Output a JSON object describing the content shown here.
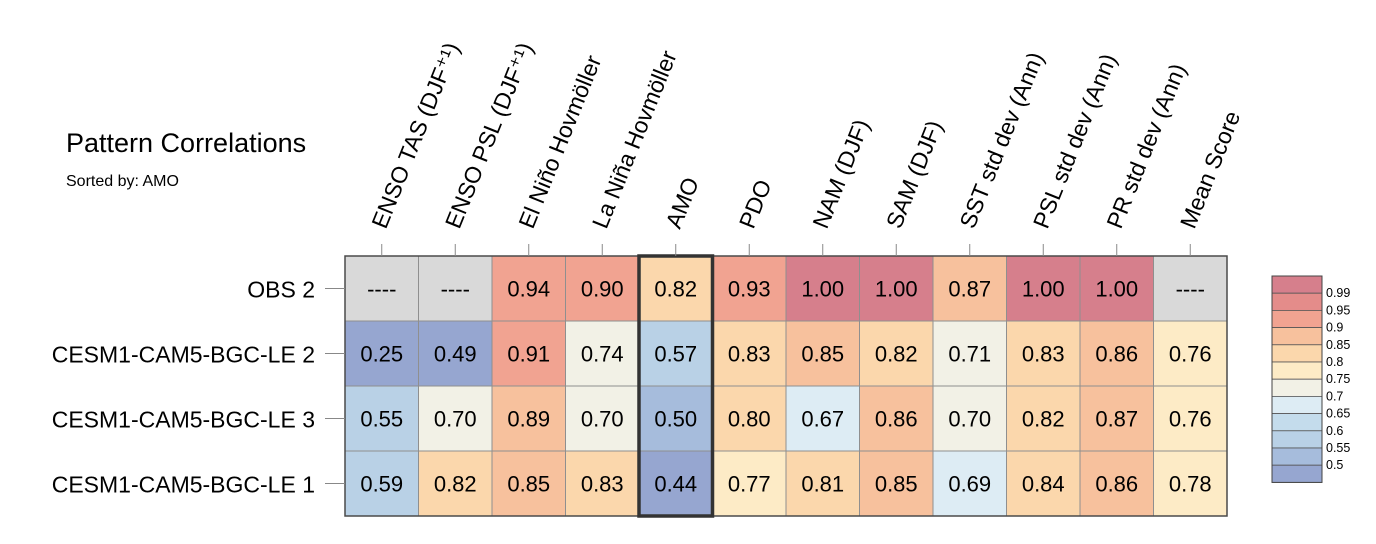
{
  "chart_data": {
    "type": "heatmap",
    "title": "Pattern Correlations",
    "subtitle": "Sorted by: AMO",
    "highlight_column": "AMO",
    "columns": [
      "ENSO TAS (DJF⁺¹)",
      "ENSO PSL (DJF⁺¹)",
      "El Niño Hovmöller",
      "La Niña Hovmöller",
      "AMO",
      "PDO",
      "NAM (DJF)",
      "SAM (DJF)",
      "SST std dev (Ann)",
      "PSL std dev (Ann)",
      "PR std dev (Ann)",
      "Mean Score"
    ],
    "rows": [
      {
        "name": "OBS 2",
        "values": [
          "----",
          "----",
          "0.94",
          "0.90",
          "0.82",
          "0.93",
          "1.00",
          "1.00",
          "0.87",
          "1.00",
          "1.00",
          "----"
        ]
      },
      {
        "name": "CESM1-CAM5-BGC-LE 2",
        "values": [
          "0.25",
          "0.49",
          "0.91",
          "0.74",
          "0.57",
          "0.83",
          "0.85",
          "0.82",
          "0.71",
          "0.83",
          "0.86",
          "0.76"
        ]
      },
      {
        "name": "CESM1-CAM5-BGC-LE 3",
        "values": [
          "0.55",
          "0.70",
          "0.89",
          "0.70",
          "0.50",
          "0.80",
          "0.67",
          "0.86",
          "0.70",
          "0.82",
          "0.87",
          "0.76"
        ]
      },
      {
        "name": "CESM1-CAM5-BGC-LE 1",
        "values": [
          "0.59",
          "0.82",
          "0.85",
          "0.83",
          "0.44",
          "0.77",
          "0.81",
          "0.85",
          "0.69",
          "0.84",
          "0.86",
          "0.78"
        ]
      }
    ],
    "missing_color": "#d9d9d9",
    "colorbar": {
      "labels": [
        "0.99",
        "0.95",
        "0.9",
        "0.85",
        "0.8",
        "0.75",
        "0.7",
        "0.65",
        "0.6",
        "0.55",
        "0.5"
      ],
      "bins": [
        {
          "min": 0.99,
          "max": 9.9,
          "color": "#d67f8c"
        },
        {
          "min": 0.95,
          "max": 0.99,
          "color": "#e48c8a"
        },
        {
          "min": 0.9,
          "max": 0.95,
          "color": "#f1a391"
        },
        {
          "min": 0.85,
          "max": 0.9,
          "color": "#f7c19d"
        },
        {
          "min": 0.8,
          "max": 0.85,
          "color": "#fbd7ac"
        },
        {
          "min": 0.75,
          "max": 0.8,
          "color": "#fdebc6"
        },
        {
          "min": 0.7,
          "max": 0.75,
          "color": "#f2f1e6"
        },
        {
          "min": 0.65,
          "max": 0.7,
          "color": "#ddecf4"
        },
        {
          "min": 0.6,
          "max": 0.65,
          "color": "#c4dcec"
        },
        {
          "min": 0.55,
          "max": 0.6,
          "color": "#b9d1e6"
        },
        {
          "min": 0.5,
          "max": 0.55,
          "color": "#a6bcdc"
        },
        {
          "min": -9.9,
          "max": 0.5,
          "color": "#96a6d0"
        }
      ]
    }
  }
}
